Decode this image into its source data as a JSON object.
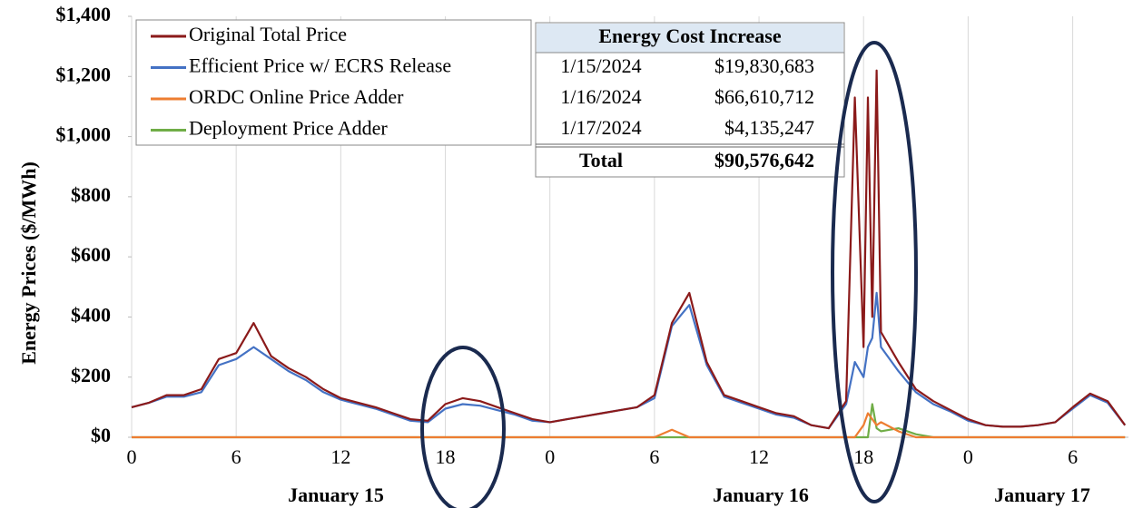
{
  "chart_data": {
    "type": "line",
    "y_label": "Energy Prices ($/MWh)",
    "x_group_labels": [
      "January 15",
      "January 16",
      "January 17"
    ],
    "x": [
      0,
      1,
      2,
      3,
      4,
      5,
      6,
      7,
      8,
      9,
      10,
      11,
      12,
      13,
      14,
      15,
      16,
      17,
      18,
      19,
      20,
      21,
      22,
      23,
      24,
      25,
      26,
      27,
      28,
      29,
      30,
      31,
      32,
      33,
      34,
      35,
      36,
      37,
      38,
      39,
      40,
      41,
      41.5,
      42,
      42.25,
      42.5,
      42.75,
      43,
      44,
      45,
      46,
      47,
      48,
      49,
      50,
      51,
      52,
      53,
      54,
      55,
      56,
      57
    ],
    "series": [
      {
        "name": "Original Total Price",
        "color": "#8b1a1a",
        "values": [
          100,
          115,
          140,
          140,
          160,
          260,
          280,
          380,
          270,
          230,
          200,
          160,
          130,
          115,
          100,
          80,
          60,
          55,
          110,
          130,
          120,
          100,
          80,
          60,
          50,
          60,
          70,
          80,
          90,
          100,
          140,
          380,
          480,
          250,
          140,
          120,
          100,
          80,
          70,
          40,
          30,
          120,
          1130,
          300,
          1130,
          400,
          1220,
          350,
          250,
          160,
          120,
          90,
          60,
          40,
          35,
          35,
          40,
          50,
          100,
          145,
          120,
          40
        ]
      },
      {
        "name": "Efficient Price w/ ECRS Release",
        "color": "#4472c4",
        "values": [
          100,
          115,
          135,
          135,
          150,
          240,
          260,
          300,
          260,
          220,
          190,
          150,
          125,
          110,
          95,
          75,
          55,
          50,
          95,
          110,
          105,
          90,
          75,
          55,
          50,
          60,
          70,
          80,
          90,
          100,
          130,
          370,
          440,
          240,
          135,
          115,
          95,
          75,
          65,
          40,
          30,
          110,
          250,
          200,
          300,
          330,
          480,
          300,
          220,
          150,
          110,
          85,
          55,
          40,
          35,
          35,
          40,
          50,
          95,
          140,
          115,
          40
        ]
      },
      {
        "name": "ORDC Online Price Adder",
        "color": "#ed7d31",
        "values": [
          0,
          0,
          0,
          0,
          0,
          0,
          0,
          0,
          0,
          0,
          0,
          0,
          0,
          0,
          0,
          0,
          0,
          0,
          0,
          0,
          0,
          0,
          0,
          0,
          0,
          0,
          0,
          0,
          0,
          0,
          0,
          25,
          0,
          0,
          0,
          0,
          0,
          0,
          0,
          0,
          0,
          0,
          0,
          40,
          80,
          60,
          40,
          50,
          20,
          0,
          0,
          0,
          0,
          0,
          0,
          0,
          0,
          0,
          0,
          0,
          0,
          0
        ]
      },
      {
        "name": "Deployment Price Adder",
        "color": "#70ad47",
        "values": [
          0,
          0,
          0,
          0,
          0,
          0,
          0,
          0,
          0,
          0,
          0,
          0,
          0,
          0,
          0,
          0,
          0,
          0,
          0,
          0,
          0,
          0,
          0,
          0,
          0,
          0,
          0,
          0,
          0,
          0,
          0,
          0,
          0,
          0,
          0,
          0,
          0,
          0,
          0,
          0,
          0,
          0,
          0,
          0,
          0,
          110,
          30,
          20,
          30,
          10,
          0,
          0,
          0,
          0,
          0,
          0,
          0,
          0,
          0,
          0,
          0,
          0
        ]
      }
    ],
    "xlim": [
      0,
      57.2
    ],
    "xticks": [
      0,
      6,
      12,
      18,
      {
        "value": 24,
        "label": "0"
      },
      {
        "value": 30,
        "label": "6"
      },
      {
        "value": 36,
        "label": "12"
      },
      {
        "value": 42,
        "label": "18"
      },
      {
        "value": 48,
        "label": "0"
      },
      {
        "value": 54,
        "label": "6"
      }
    ],
    "ylim": [
      0,
      1400
    ],
    "yticks": [
      {
        "value": 0,
        "label": "$0"
      },
      {
        "value": 200,
        "label": "$200"
      },
      {
        "value": 400,
        "label": "$400"
      },
      {
        "value": 600,
        "label": "$600"
      },
      {
        "value": 800,
        "label": "$800"
      },
      {
        "value": 1000,
        "label": "$1,000"
      },
      {
        "value": 1200,
        "label": "$1,200"
      },
      {
        "value": 1400,
        "label": "$1,400"
      }
    ],
    "grid": "x",
    "legend": "upper left",
    "table": {
      "title": "Energy Cost Increase",
      "rows": [
        [
          "1/15/2024",
          "$19,830,683"
        ],
        [
          "1/16/2024",
          "$66,610,712"
        ],
        [
          "1/17/2024",
          "$4,135,247"
        ]
      ],
      "total": [
        "Total",
        "$90,576,642"
      ]
    }
  }
}
